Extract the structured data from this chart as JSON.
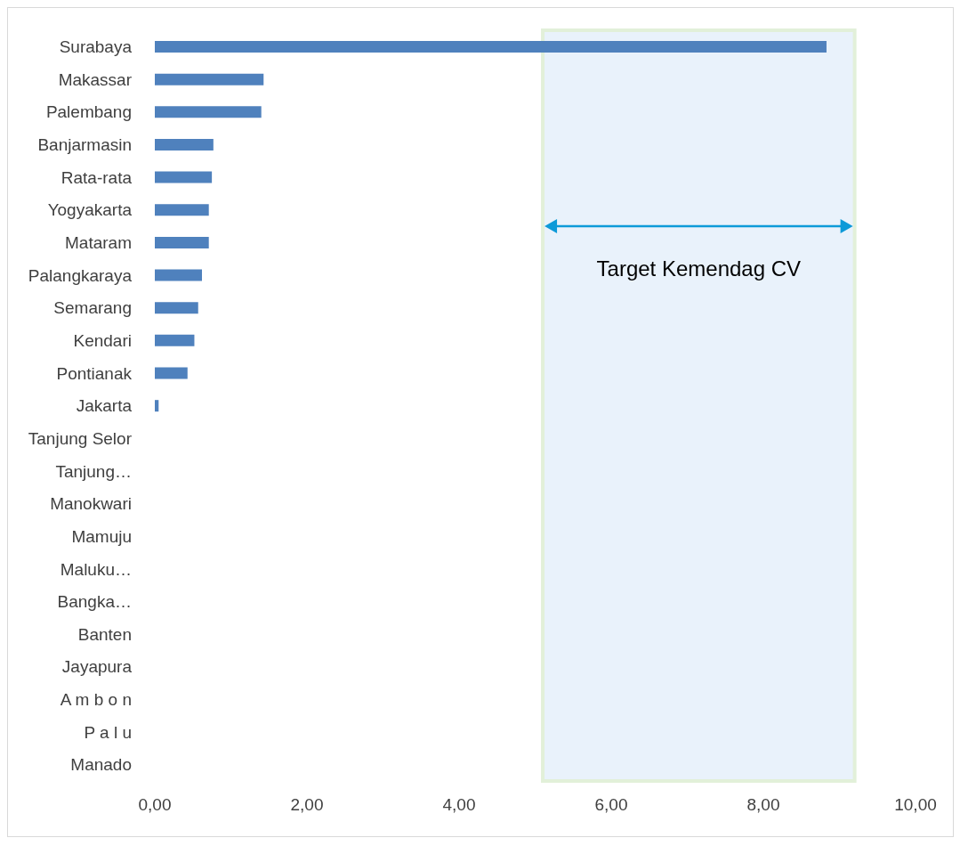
{
  "chart_data": {
    "type": "bar",
    "orientation": "horizontal",
    "categories": [
      "Surabaya",
      "Makassar",
      "Palembang",
      "Banjarmasin",
      "Rata-rata",
      "Yogyakarta",
      "Mataram",
      "Palangkaraya",
      "Semarang",
      "Kendari",
      "Pontianak",
      "Jakarta",
      "Tanjung Selor",
      "Tanjung…",
      "Manokwari",
      "Mamuju",
      "Maluku…",
      "Bangka…",
      "Banten",
      "Jayapura",
      "A m b o n",
      "P a l u",
      "Manado"
    ],
    "values": [
      8.83,
      1.43,
      1.4,
      0.77,
      0.75,
      0.71,
      0.71,
      0.62,
      0.57,
      0.52,
      0.43,
      0.05,
      0,
      0,
      0,
      0,
      0,
      0,
      0,
      0,
      0,
      0,
      0
    ],
    "color": "#4f81bd",
    "xlim": [
      0,
      10
    ],
    "xticks": [
      {
        "value": 0,
        "label": "0,00"
      },
      {
        "value": 2,
        "label": "2,00"
      },
      {
        "value": 4,
        "label": "4,00"
      },
      {
        "value": 6,
        "label": "6,00"
      },
      {
        "value": 8,
        "label": "8,00"
      },
      {
        "value": 10,
        "label": "10,00"
      }
    ],
    "bands": [
      {
        "axis": "x",
        "from": 5.1,
        "to": 9.2,
        "label": "Target Kemendag CV",
        "color": "#dbeaf8"
      }
    ],
    "grid": false,
    "legend": false
  }
}
